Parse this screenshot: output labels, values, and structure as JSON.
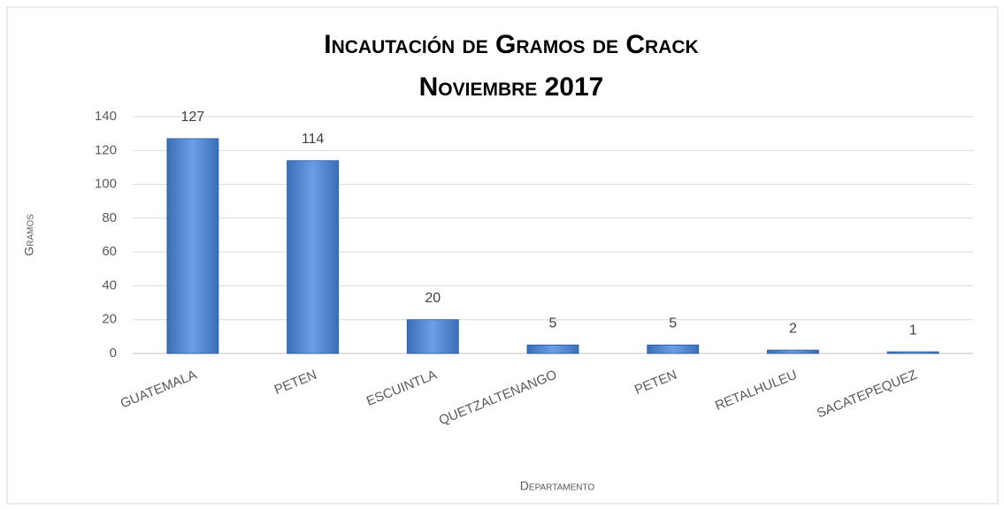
{
  "chart_data": {
    "type": "bar",
    "title": "Incautación de Gramos de Crack",
    "subtitle": "Noviembre 2017",
    "y_label": "Gramos",
    "x_label": "Departamento",
    "categories": [
      "GUATEMALA",
      "PETEN",
      "ESCUINTLA",
      "QUETZALTENANGO",
      "PETEN",
      "RETALHULEU",
      "SACATEPEQUEZ"
    ],
    "values": [
      127,
      114,
      20,
      5,
      5,
      2,
      1
    ],
    "color": "#3a6fb8",
    "ylim": [
      0,
      140
    ],
    "yticks": [
      0,
      20,
      40,
      60,
      80,
      100,
      120,
      140
    ],
    "grid": true
  }
}
